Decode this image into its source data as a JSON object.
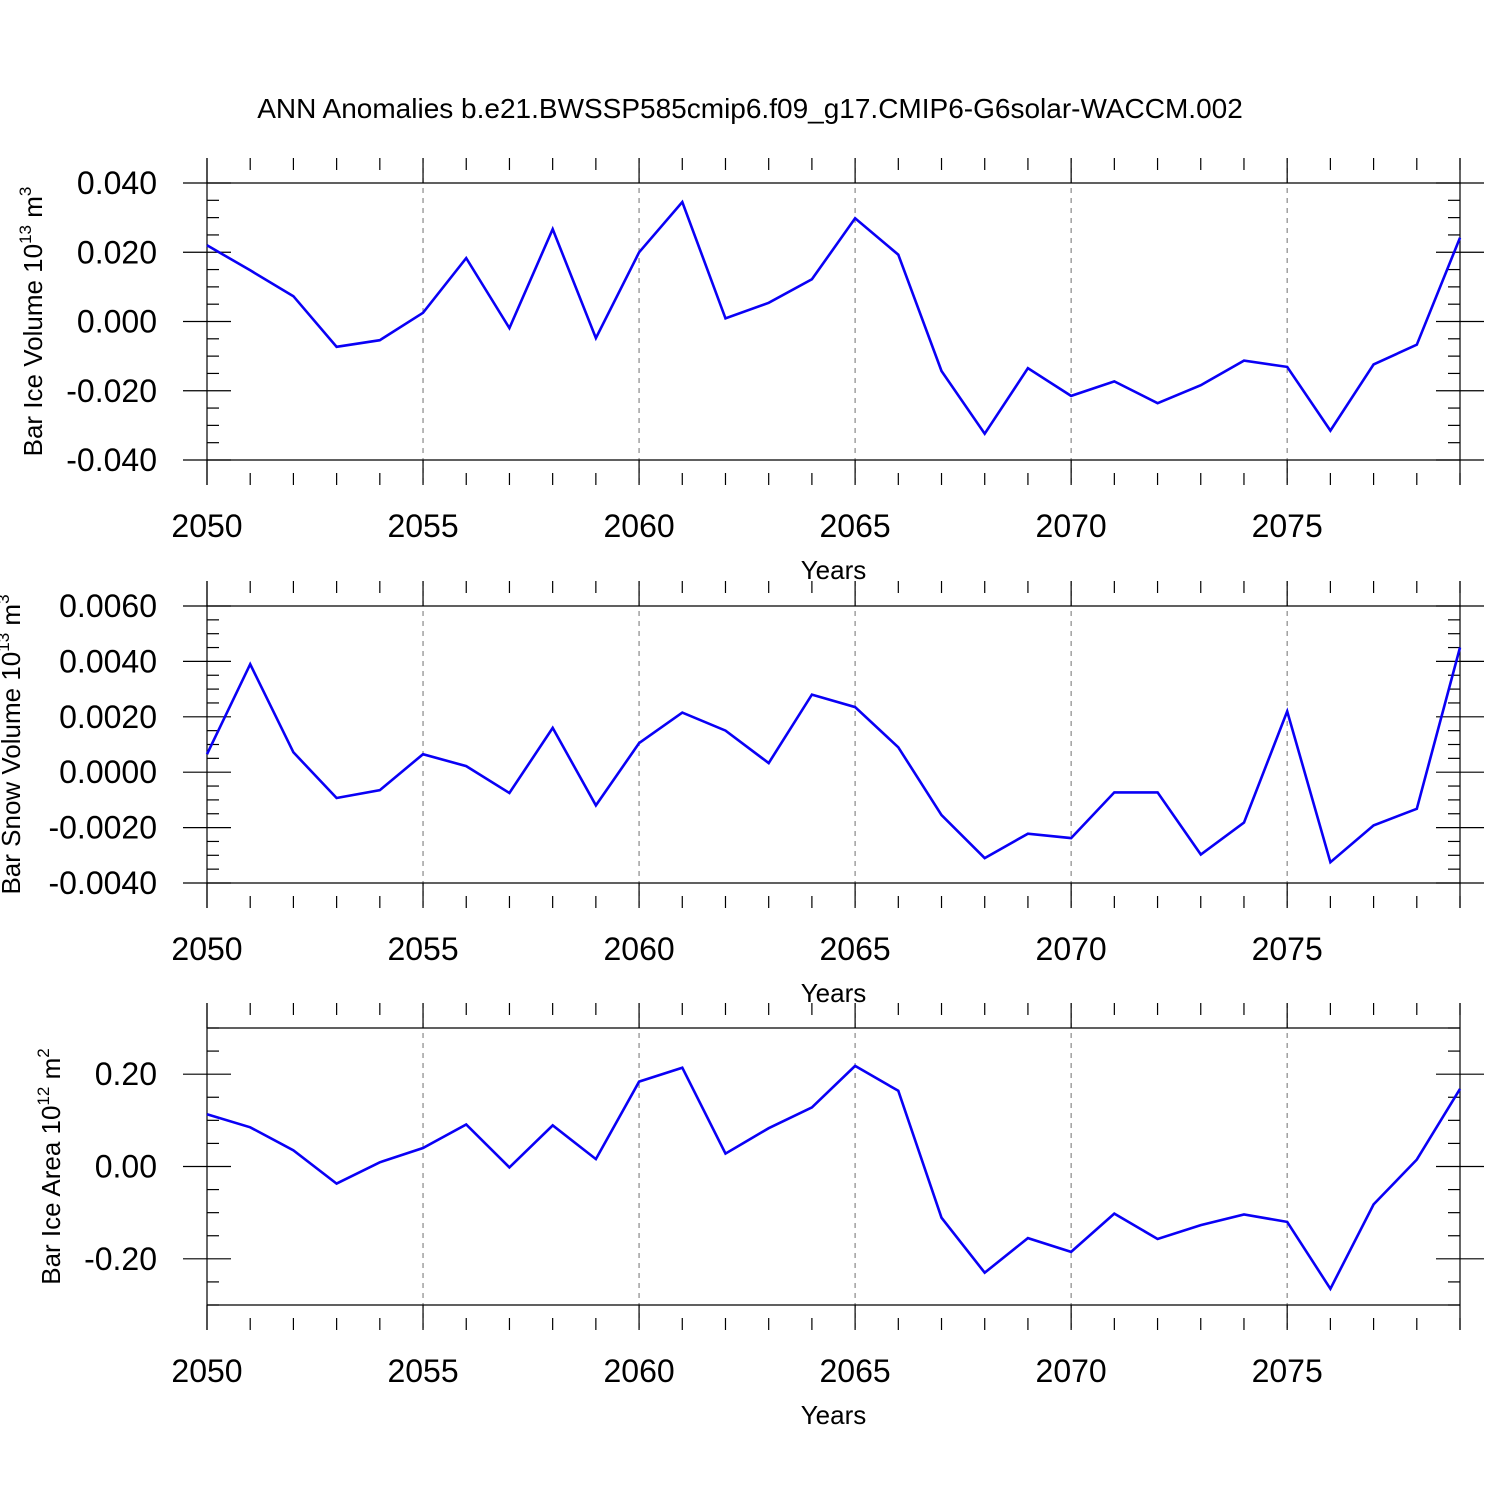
{
  "title": "ANN Anomalies b.e21.BWSSP585cmip6.f09_g17.CMIP6-G6solar-WACCM.002",
  "chart_data": [
    {
      "type": "line",
      "xlabel": "Years",
      "ylabel": "Bar Ice Volume 10",
      "ylabel_exp": "13",
      "ylabel_unit": " m",
      "ylabel_unit_exp": "3",
      "xlim": [
        2050,
        2079
      ],
      "ylim": [
        -0.04,
        0.04
      ],
      "xticks": [
        2050,
        2055,
        2060,
        2065,
        2070,
        2075
      ],
      "xtick_labels": [
        "2050",
        "2055",
        "2060",
        "2065",
        "2070",
        "2075"
      ],
      "yticks": [
        -0.04,
        -0.02,
        0.0,
        0.02,
        0.04
      ],
      "ytick_labels": [
        "-0.040",
        "-0.020",
        "0.000",
        "0.020",
        "0.040"
      ],
      "x": [
        2050,
        2051,
        2052,
        2053,
        2054,
        2055,
        2056,
        2057,
        2058,
        2059,
        2060,
        2061,
        2062,
        2063,
        2064,
        2065,
        2066,
        2067,
        2068,
        2069,
        2070,
        2071,
        2072,
        2073,
        2074,
        2075,
        2076,
        2077,
        2078,
        2079
      ],
      "y": [
        0.022,
        0.0148,
        0.0073,
        -0.0073,
        -0.0054,
        0.0025,
        0.0183,
        -0.0019,
        0.0267,
        -0.0048,
        0.02,
        0.0345,
        0.0009,
        0.0054,
        0.0122,
        0.0298,
        0.0193,
        -0.0143,
        -0.0324,
        -0.0135,
        -0.0215,
        -0.0173,
        -0.0236,
        -0.0184,
        -0.0113,
        -0.0131,
        -0.0315,
        -0.0124,
        -0.0067,
        0.0242
      ],
      "color": "#0a00f5",
      "grid": "dashed vertical at labeled years"
    },
    {
      "type": "line",
      "xlabel": "Years",
      "ylabel": "Bar Snow Volume 10",
      "ylabel_exp": "13",
      "ylabel_unit": " m",
      "ylabel_unit_exp": "3",
      "xlim": [
        2050,
        2079
      ],
      "ylim": [
        -0.004,
        0.006
      ],
      "xticks": [
        2050,
        2055,
        2060,
        2065,
        2070,
        2075
      ],
      "xtick_labels": [
        "2050",
        "2055",
        "2060",
        "2065",
        "2070",
        "2075"
      ],
      "yticks": [
        -0.004,
        -0.002,
        0.0,
        0.002,
        0.004,
        0.006
      ],
      "ytick_labels": [
        "-0.0040",
        "-0.0020",
        "0.0000",
        "0.0020",
        "0.0040",
        "0.0060"
      ],
      "x": [
        2050,
        2051,
        2052,
        2053,
        2054,
        2055,
        2056,
        2057,
        2058,
        2059,
        2060,
        2061,
        2062,
        2063,
        2064,
        2065,
        2066,
        2067,
        2068,
        2069,
        2070,
        2071,
        2072,
        2073,
        2074,
        2075,
        2076,
        2077,
        2078,
        2079
      ],
      "y": [
        0.00065,
        0.0039,
        0.00072,
        -0.00093,
        -0.00065,
        0.00065,
        0.00022,
        -0.00075,
        0.0016,
        -0.0012,
        0.00105,
        0.00215,
        0.0015,
        0.00033,
        0.0028,
        0.00235,
        0.0009,
        -0.00155,
        -0.0031,
        -0.00222,
        -0.00238,
        -0.00073,
        -0.00073,
        -0.00297,
        -0.00182,
        0.0022,
        -0.00325,
        -0.00192,
        -0.00132,
        0.0045
      ],
      "color": "#0a00f5",
      "grid": "dashed vertical at labeled years"
    },
    {
      "type": "line",
      "xlabel": "Years",
      "ylabel": "Bar Ice Area 10",
      "ylabel_exp": "12",
      "ylabel_unit": " m",
      "ylabel_unit_exp": "2",
      "xlim": [
        2050,
        2079
      ],
      "ylim": [
        -0.3,
        0.3
      ],
      "xticks": [
        2050,
        2055,
        2060,
        2065,
        2070,
        2075
      ],
      "xtick_labels": [
        "2050",
        "2055",
        "2060",
        "2065",
        "2070",
        "2075"
      ],
      "yticks": [
        -0.2,
        0.0,
        0.2
      ],
      "ytick_labels": [
        "-0.20",
        "0.00",
        "0.20"
      ],
      "x": [
        2050,
        2051,
        2052,
        2053,
        2054,
        2055,
        2056,
        2057,
        2058,
        2059,
        2060,
        2061,
        2062,
        2063,
        2064,
        2065,
        2066,
        2067,
        2068,
        2069,
        2070,
        2071,
        2072,
        2073,
        2074,
        2075,
        2076,
        2077,
        2078,
        2079
      ],
      "y": [
        0.113,
        0.085,
        0.035,
        -0.037,
        0.009,
        0.04,
        0.091,
        -0.002,
        0.089,
        0.016,
        0.184,
        0.214,
        0.028,
        0.083,
        0.128,
        0.218,
        0.164,
        -0.111,
        -0.23,
        -0.155,
        -0.185,
        -0.102,
        -0.157,
        -0.127,
        -0.104,
        -0.12,
        -0.265,
        -0.082,
        0.015,
        0.168
      ],
      "color": "#0a00f5",
      "grid": "dashed vertical at labeled years"
    }
  ]
}
